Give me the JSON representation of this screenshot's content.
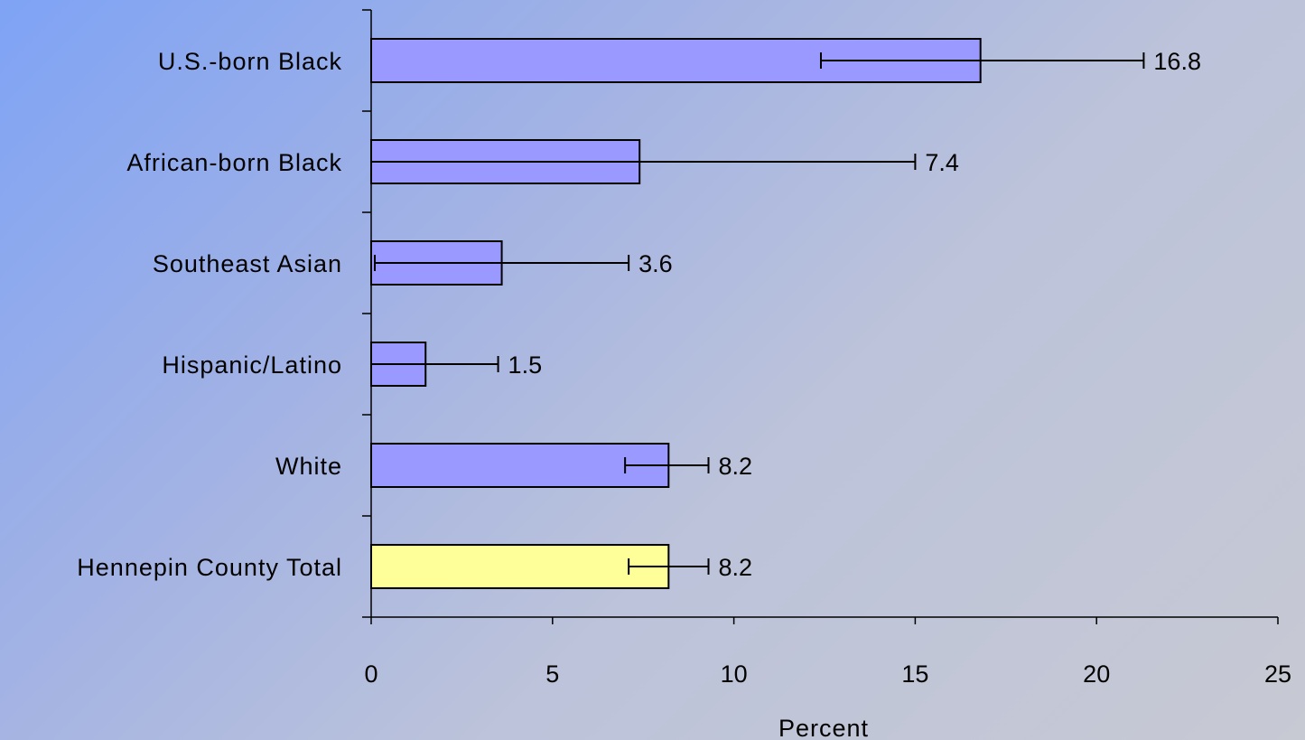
{
  "chart_data": {
    "type": "bar",
    "orientation": "horizontal",
    "categories": [
      "U.S.-born Black",
      "African-born Black",
      "Southeast Asian",
      "Hispanic/Latino",
      "White",
      "Hennepin County Total"
    ],
    "values": [
      16.8,
      7.4,
      3.6,
      1.5,
      8.2,
      8.2
    ],
    "value_labels": [
      "16.8",
      "7.4",
      "3.6",
      "1.5",
      "8.2",
      "8.2"
    ],
    "error_low": [
      12.4,
      0.0,
      0.1,
      0.0,
      7.0,
      7.1
    ],
    "error_high": [
      21.3,
      15.0,
      7.1,
      3.5,
      9.3,
      9.3
    ],
    "bar_colors": [
      "#9999ff",
      "#9999ff",
      "#9999ff",
      "#9999ff",
      "#9999ff",
      "#ffff99"
    ],
    "xlabel": "Percent",
    "xlim": [
      0,
      25
    ],
    "xticks": [
      0,
      5,
      10,
      15,
      20,
      25
    ],
    "grid": false,
    "legend": "none"
  }
}
